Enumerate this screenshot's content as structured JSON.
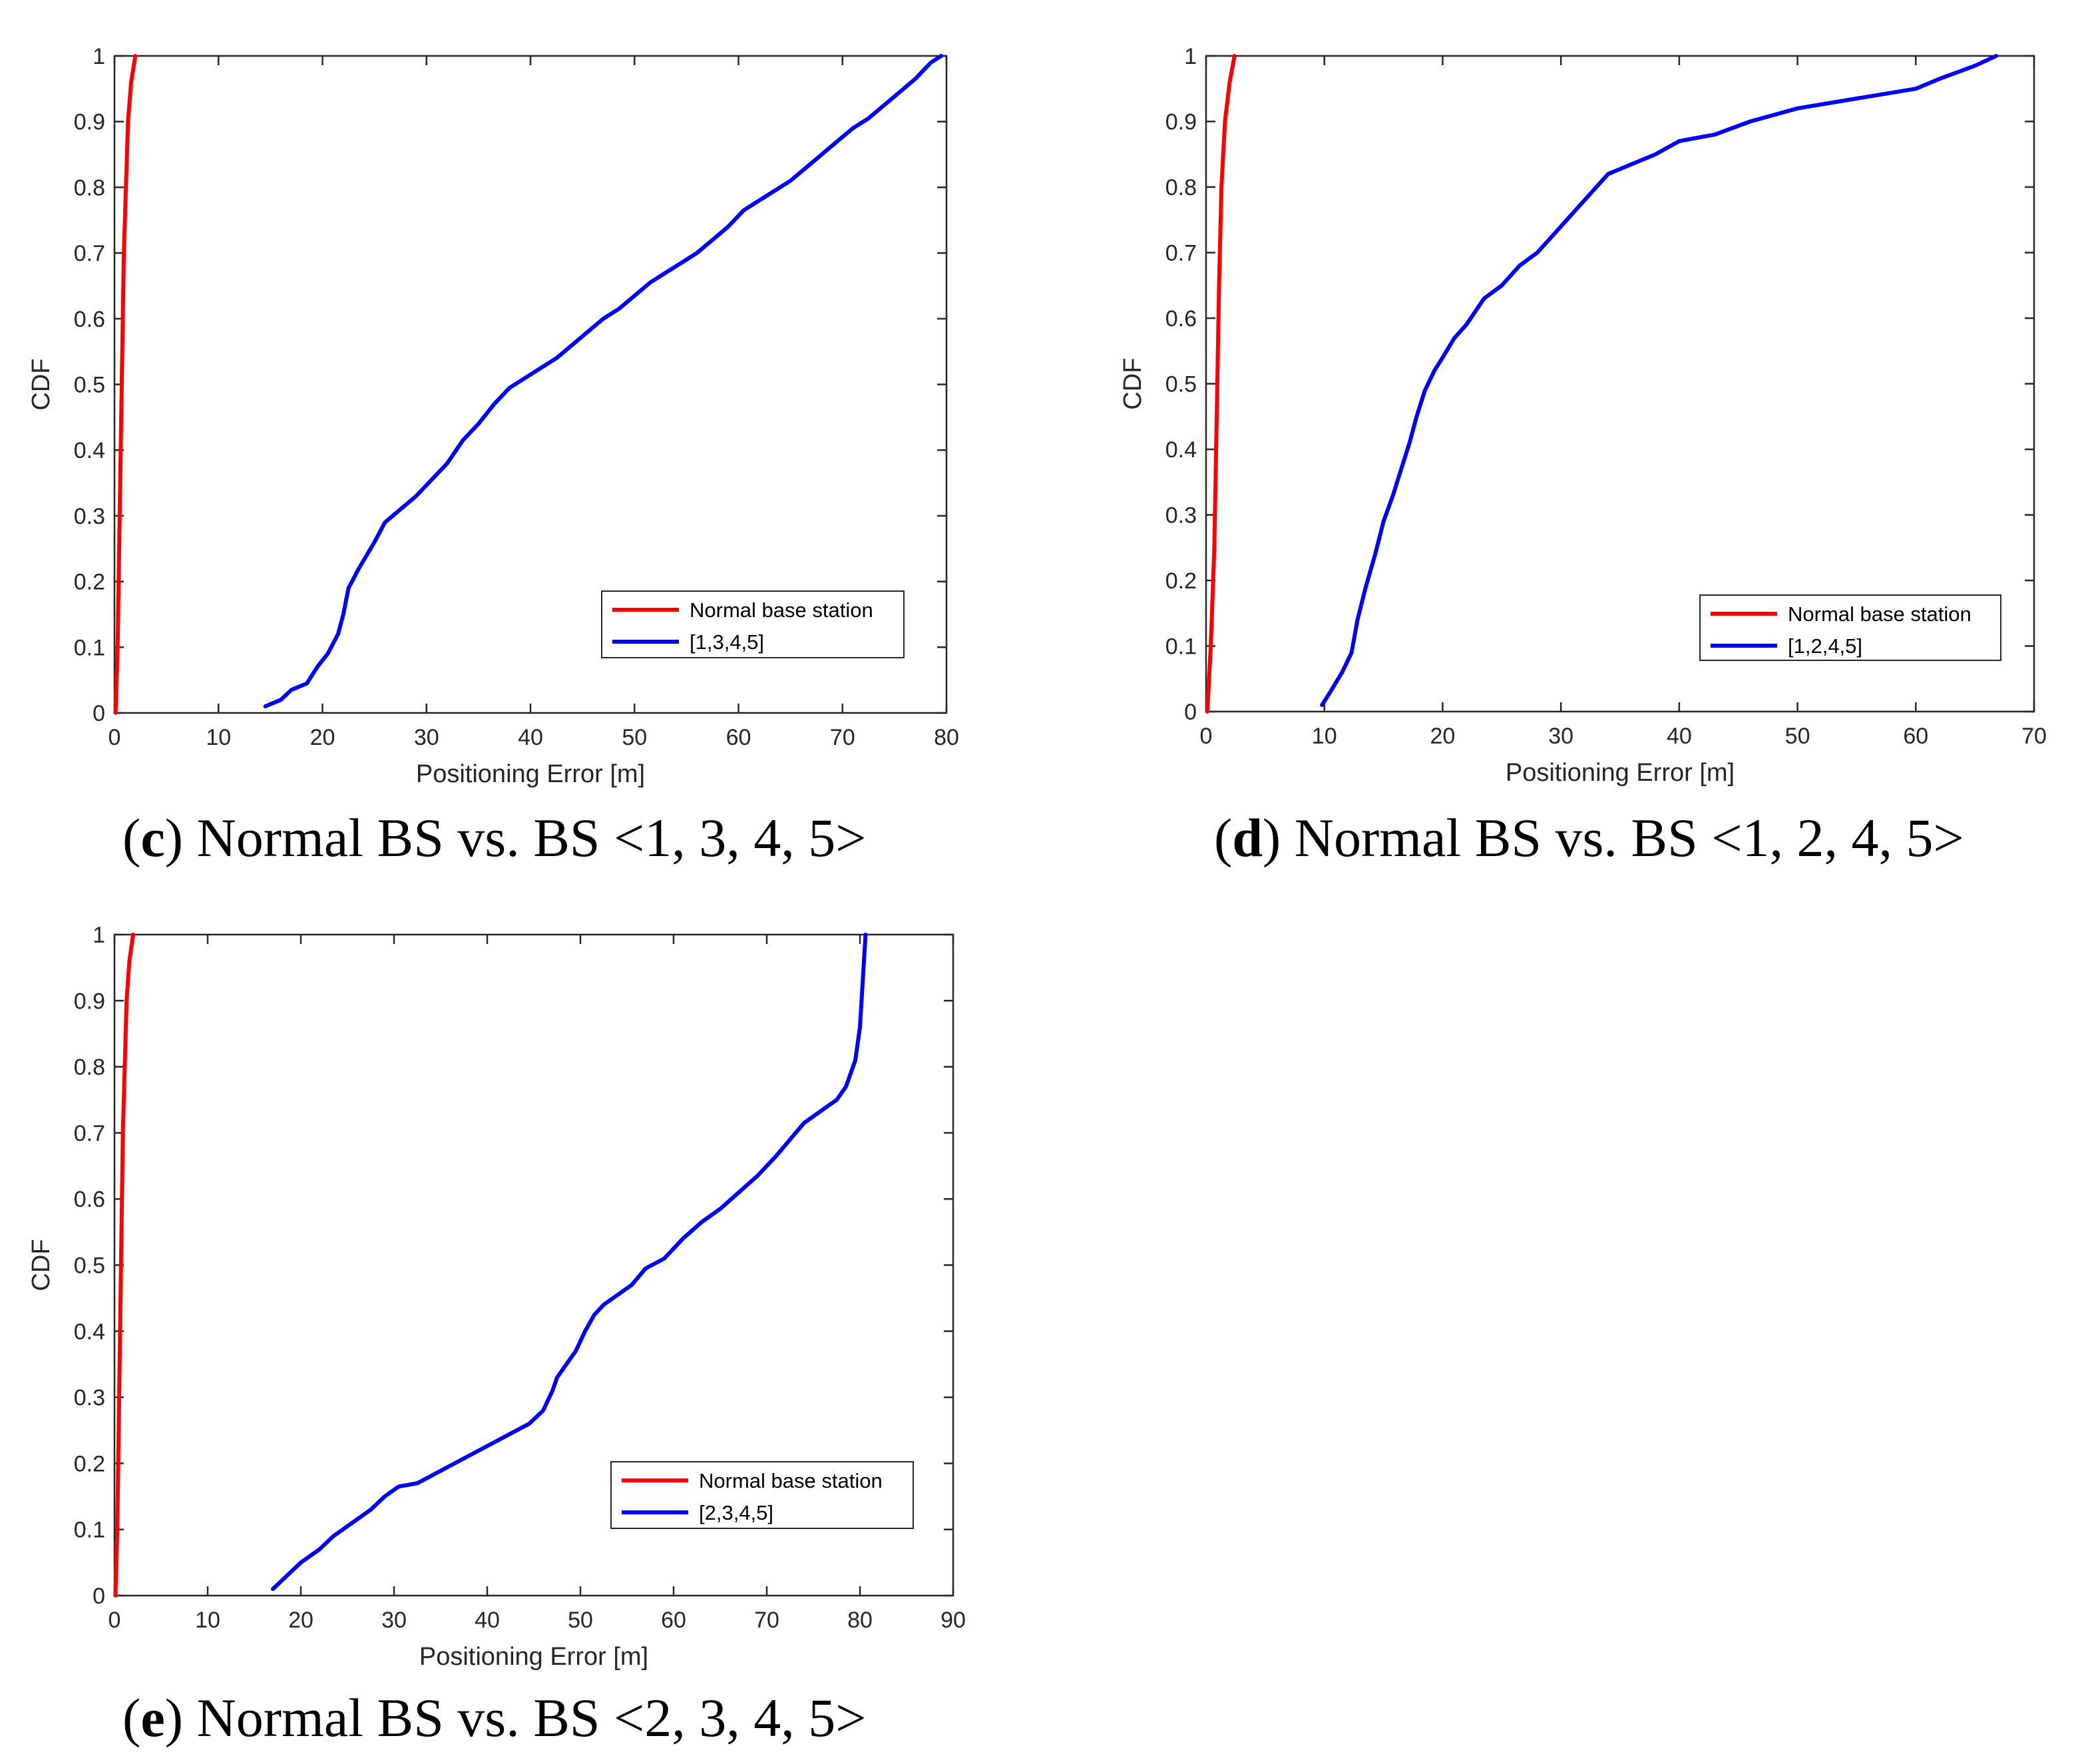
{
  "colors": {
    "red_series": "#ff0000",
    "blue_series": "#0000ff",
    "axis": "#262626"
  },
  "chart_data": [
    {
      "id": "c",
      "type": "line",
      "title": "",
      "xlabel": "Positioning Error [m]",
      "ylabel": "CDF",
      "xlim": [
        0,
        80
      ],
      "ylim": [
        0,
        1
      ],
      "xticks": [
        "0",
        "10",
        "20",
        "30",
        "40",
        "50",
        "60",
        "70",
        "80"
      ],
      "yticks": [
        "0",
        "0.1",
        "0.2",
        "0.3",
        "0.4",
        "0.5",
        "0.6",
        "0.7",
        "0.8",
        "0.9",
        "1"
      ],
      "grid": false,
      "legend_position": "bottom-right",
      "caption": {
        "open": "(",
        "letter": "c",
        "text": ") Normal BS vs. BS <1, 3, 4, 5>"
      },
      "series": [
        {
          "name": "Normal base station",
          "color": "#ff0000",
          "x": [
            0.1,
            0.3,
            0.5,
            0.7,
            0.9,
            1.1,
            1.3,
            1.6,
            2.0
          ],
          "y": [
            0.0,
            0.1,
            0.3,
            0.5,
            0.7,
            0.8,
            0.9,
            0.96,
            1.0
          ]
        },
        {
          "name": "[1,3,4,5]",
          "color": "#0000ff",
          "x": [
            14.5,
            16,
            17,
            18.5,
            19.5,
            20.5,
            21.5,
            22,
            22.5,
            23.5,
            25,
            26,
            27.5,
            29,
            30.5,
            32,
            33.5,
            35,
            36.5,
            38,
            39.5,
            41,
            42.5,
            44,
            45.5,
            47,
            48.5,
            50,
            51.5,
            53,
            54.5,
            56,
            57.5,
            59,
            60.5,
            62,
            63.5,
            65,
            66.5,
            68,
            69.5,
            71,
            72.5,
            74,
            75.5,
            77,
            78.5,
            79.5
          ],
          "y": [
            0.01,
            0.02,
            0.035,
            0.045,
            0.07,
            0.09,
            0.12,
            0.15,
            0.19,
            0.22,
            0.26,
            0.29,
            0.31,
            0.33,
            0.355,
            0.38,
            0.415,
            0.44,
            0.47,
            0.495,
            0.51,
            0.525,
            0.54,
            0.56,
            0.58,
            0.6,
            0.615,
            0.635,
            0.655,
            0.67,
            0.685,
            0.7,
            0.72,
            0.74,
            0.765,
            0.78,
            0.795,
            0.81,
            0.83,
            0.85,
            0.87,
            0.89,
            0.905,
            0.925,
            0.945,
            0.965,
            0.99,
            1.0
          ]
        }
      ]
    },
    {
      "id": "d",
      "type": "line",
      "title": "",
      "xlabel": "Positioning Error [m]",
      "ylabel": "CDF",
      "xlim": [
        0,
        70
      ],
      "ylim": [
        0,
        1
      ],
      "xticks": [
        "0",
        "10",
        "20",
        "30",
        "40",
        "50",
        "60",
        "70"
      ],
      "yticks": [
        "0",
        "0.1",
        "0.2",
        "0.3",
        "0.4",
        "0.5",
        "0.6",
        "0.7",
        "0.8",
        "0.9",
        "1"
      ],
      "grid": false,
      "legend_position": "bottom-right",
      "caption": {
        "open": "(",
        "letter": "d",
        "text": ") Normal BS vs. BS <1, 2, 4, 5>"
      },
      "series": [
        {
          "name": "Normal base station",
          "color": "#ff0000",
          "x": [
            0.1,
            0.4,
            0.7,
            0.9,
            1.1,
            1.3,
            1.6,
            2.0,
            2.4
          ],
          "y": [
            0.0,
            0.1,
            0.25,
            0.45,
            0.65,
            0.8,
            0.9,
            0.96,
            1.0
          ]
        },
        {
          "name": "[1,2,4,5]",
          "color": "#0000ff",
          "x": [
            9.8,
            10.5,
            11.5,
            12.3,
            12.8,
            13.5,
            14.3,
            15,
            15.8,
            16.5,
            17.2,
            17.8,
            18.5,
            19.3,
            20,
            21,
            22,
            23.5,
            25,
            26.5,
            28,
            29.5,
            31,
            32.5,
            34,
            36,
            38,
            40,
            43,
            46,
            50,
            55,
            60,
            62,
            65,
            66.8
          ],
          "y": [
            0.01,
            0.03,
            0.06,
            0.09,
            0.14,
            0.19,
            0.24,
            0.29,
            0.33,
            0.37,
            0.41,
            0.45,
            0.49,
            0.52,
            0.54,
            0.57,
            0.59,
            0.63,
            0.65,
            0.68,
            0.7,
            0.73,
            0.76,
            0.79,
            0.82,
            0.835,
            0.85,
            0.87,
            0.88,
            0.9,
            0.92,
            0.935,
            0.95,
            0.965,
            0.985,
            1.0
          ]
        }
      ]
    },
    {
      "id": "e",
      "type": "line",
      "title": "",
      "xlabel": "Positioning Error [m]",
      "ylabel": "CDF",
      "xlim": [
        0,
        90
      ],
      "ylim": [
        0,
        1
      ],
      "xticks": [
        "0",
        "10",
        "20",
        "30",
        "40",
        "50",
        "60",
        "70",
        "80",
        "90"
      ],
      "yticks": [
        "0",
        "0.1",
        "0.2",
        "0.3",
        "0.4",
        "0.5",
        "0.6",
        "0.7",
        "0.8",
        "0.9",
        "1"
      ],
      "grid": false,
      "legend_position": "bottom-right",
      "caption": {
        "open": "(",
        "letter": "e",
        "text": ") Normal BS vs. BS <2, 3, 4, 5>"
      },
      "series": [
        {
          "name": "Normal base station",
          "color": "#ff0000",
          "x": [
            0.1,
            0.3,
            0.5,
            0.7,
            0.9,
            1.1,
            1.3,
            1.6,
            2.0
          ],
          "y": [
            0.0,
            0.1,
            0.3,
            0.5,
            0.7,
            0.8,
            0.9,
            0.96,
            1.0
          ]
        },
        {
          "name": "[2,3,4,5]",
          "color": "#0000ff",
          "x": [
            17,
            18.5,
            20,
            22,
            23.5,
            25.5,
            27.5,
            29,
            30.5,
            32.5,
            34.5,
            36.5,
            38.5,
            40.5,
            42.5,
            44.5,
            46,
            47,
            47.5,
            48.5,
            49.5,
            50.5,
            51.5,
            52.5,
            54,
            55.5,
            57,
            59,
            61,
            63,
            65,
            67,
            69,
            71,
            72.5,
            74,
            76,
            77.5,
            78.5,
            79.5,
            80,
            80.3,
            80.6
          ],
          "y": [
            0.01,
            0.03,
            0.05,
            0.07,
            0.09,
            0.11,
            0.13,
            0.15,
            0.165,
            0.17,
            0.185,
            0.2,
            0.215,
            0.23,
            0.245,
            0.26,
            0.28,
            0.31,
            0.33,
            0.35,
            0.37,
            0.4,
            0.425,
            0.44,
            0.455,
            0.47,
            0.495,
            0.51,
            0.54,
            0.565,
            0.585,
            0.61,
            0.635,
            0.665,
            0.69,
            0.715,
            0.735,
            0.75,
            0.77,
            0.81,
            0.86,
            0.93,
            1.0
          ]
        }
      ]
    }
  ]
}
